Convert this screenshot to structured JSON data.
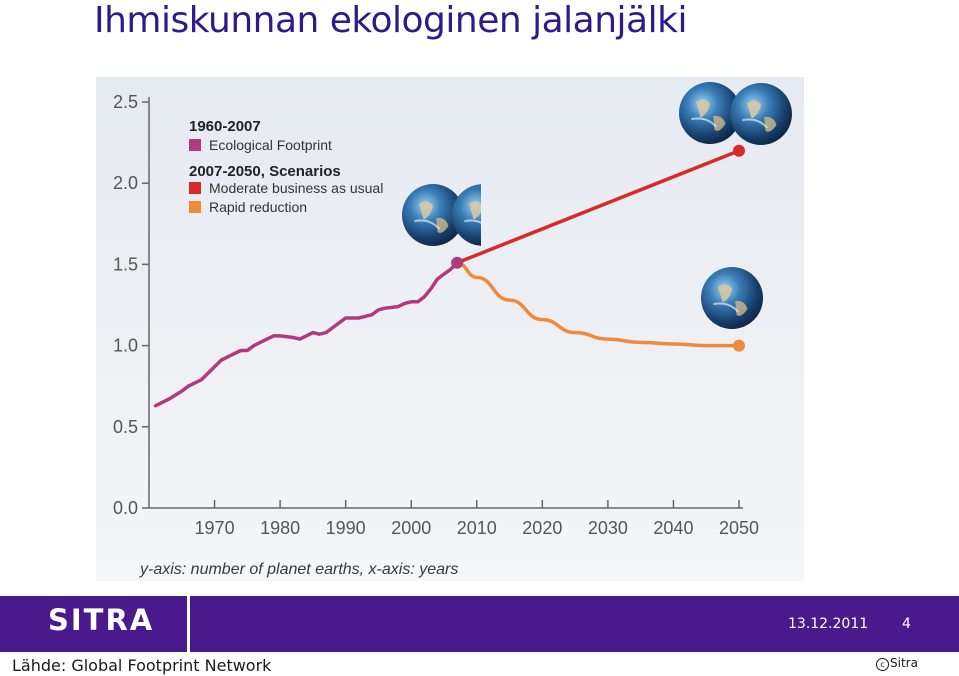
{
  "slide": {
    "title": "Ihmiskunnan ekologinen jalanjälki",
    "axis_caption": "y-axis: number of planet earths, x-axis: years",
    "footer": {
      "logo_text": "SITRA",
      "date": "13.12.2011",
      "page": "4"
    },
    "source": "Lähde: Global Footprint Network",
    "copyright": "Sitra"
  },
  "colors": {
    "title": "#2e1a8c",
    "footer": "#4a1a8c",
    "historical": "#b03a7a",
    "moderate": "#d92a2a",
    "rapid": "#f08a3a"
  },
  "chart_data": {
    "type": "line",
    "x_ticks": [
      "1970",
      "1980",
      "1990",
      "2000",
      "2010",
      "2020",
      "2030",
      "2040",
      "2050"
    ],
    "y_ticks": [
      "0.0",
      "0.5",
      "1.0",
      "1.5",
      "2.0",
      "2.5"
    ],
    "xlim": [
      1960,
      2050
    ],
    "ylim": [
      0,
      2.5
    ],
    "legend": {
      "group1_title": "1960-2007",
      "group2_title": "2007-2050, Scenarios"
    },
    "series": [
      {
        "name": "Ecological Footprint",
        "color": "#b03a7a",
        "x": [
          1961,
          1963,
          1965,
          1966,
          1968,
          1970,
          1971,
          1973,
          1974,
          1975,
          1976,
          1978,
          1979,
          1980,
          1982,
          1983,
          1984,
          1985,
          1986,
          1987,
          1989,
          1990,
          1992,
          1994,
          1995,
          1996,
          1998,
          1999,
          2000,
          2001,
          2002,
          2003,
          2004,
          2005,
          2006,
          2007
        ],
        "y": [
          0.63,
          0.67,
          0.72,
          0.75,
          0.79,
          0.87,
          0.91,
          0.95,
          0.97,
          0.97,
          1.0,
          1.04,
          1.06,
          1.06,
          1.05,
          1.04,
          1.06,
          1.08,
          1.07,
          1.08,
          1.14,
          1.17,
          1.17,
          1.19,
          1.22,
          1.23,
          1.24,
          1.26,
          1.27,
          1.27,
          1.3,
          1.35,
          1.41,
          1.44,
          1.47,
          1.51
        ]
      },
      {
        "name": "Moderate business as usual",
        "color": "#d92a2a",
        "x": [
          2007,
          2050
        ],
        "y": [
          1.51,
          2.2
        ]
      },
      {
        "name": "Rapid reduction",
        "color": "#f08a3a",
        "x": [
          2007,
          2010,
          2015,
          2020,
          2025,
          2030,
          2035,
          2040,
          2045,
          2050
        ],
        "y": [
          1.51,
          1.42,
          1.28,
          1.16,
          1.08,
          1.04,
          1.02,
          1.01,
          1.0,
          1.0
        ]
      }
    ],
    "earth_icons": [
      {
        "name": "earth-icon",
        "count": 2,
        "near": "2007"
      },
      {
        "name": "earth-icon",
        "count": 2,
        "near": "moderate-2050"
      },
      {
        "name": "earth-icon",
        "count": 1,
        "near": "rapid-2050"
      }
    ]
  }
}
